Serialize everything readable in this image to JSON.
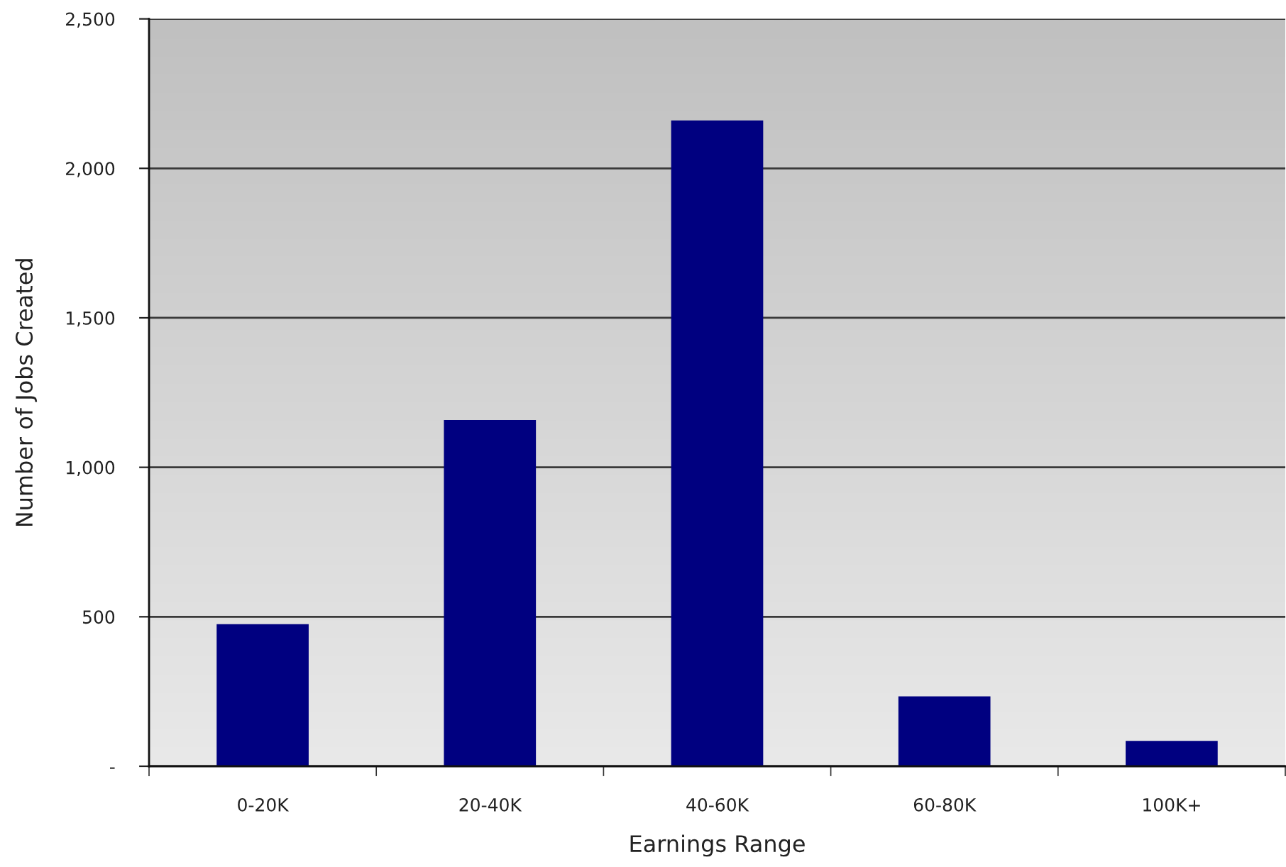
{
  "chart_data": {
    "type": "bar",
    "xlabel": "Earnings Range",
    "ylabel": "Number of Jobs Created",
    "categories": [
      "0-20K",
      "20-40K",
      "40-60K",
      "60-80K",
      "100K+"
    ],
    "values": [
      475,
      1158,
      2160,
      234,
      85
    ],
    "color": "#000080",
    "ylim": [
      0,
      2500
    ],
    "yticks": [
      {
        "value": 0,
        "label": "-"
      },
      500,
      {
        "value": 1000,
        "label": "1,000"
      },
      {
        "value": 1500,
        "label": "1,500"
      },
      {
        "value": 2000,
        "label": "2,000"
      },
      {
        "value": 2500,
        "label": "2,500"
      }
    ],
    "grid": "y"
  }
}
